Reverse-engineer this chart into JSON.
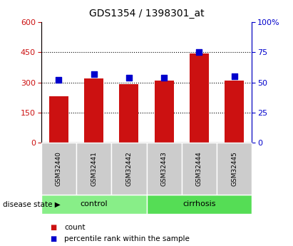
{
  "title": "GDS1354 / 1398301_at",
  "samples": [
    "GSM32440",
    "GSM32441",
    "GSM32442",
    "GSM32443",
    "GSM32444",
    "GSM32445"
  ],
  "count_values": [
    230,
    320,
    290,
    310,
    445,
    310
  ],
  "percentile_values": [
    52,
    57,
    54,
    54,
    75,
    55
  ],
  "left_ylim": [
    0,
    600
  ],
  "right_ylim": [
    0,
    100
  ],
  "left_yticks": [
    0,
    150,
    300,
    450,
    600
  ],
  "right_yticks": [
    0,
    25,
    50,
    75,
    100
  ],
  "right_yticklabels": [
    "0",
    "25",
    "50",
    "75",
    "100%"
  ],
  "bar_color": "#cc1111",
  "dot_color": "#0000cc",
  "groups": [
    {
      "label": "control",
      "start": 0,
      "end": 2,
      "color": "#88ee88"
    },
    {
      "label": "cirrhosis",
      "start": 3,
      "end": 5,
      "color": "#55dd55"
    }
  ],
  "group_label_prefix": "disease state",
  "legend_count_label": "count",
  "legend_pct_label": "percentile rank within the sample",
  "bar_width": 0.55,
  "tick_label_area_color": "#cccccc",
  "title_fontsize": 10
}
